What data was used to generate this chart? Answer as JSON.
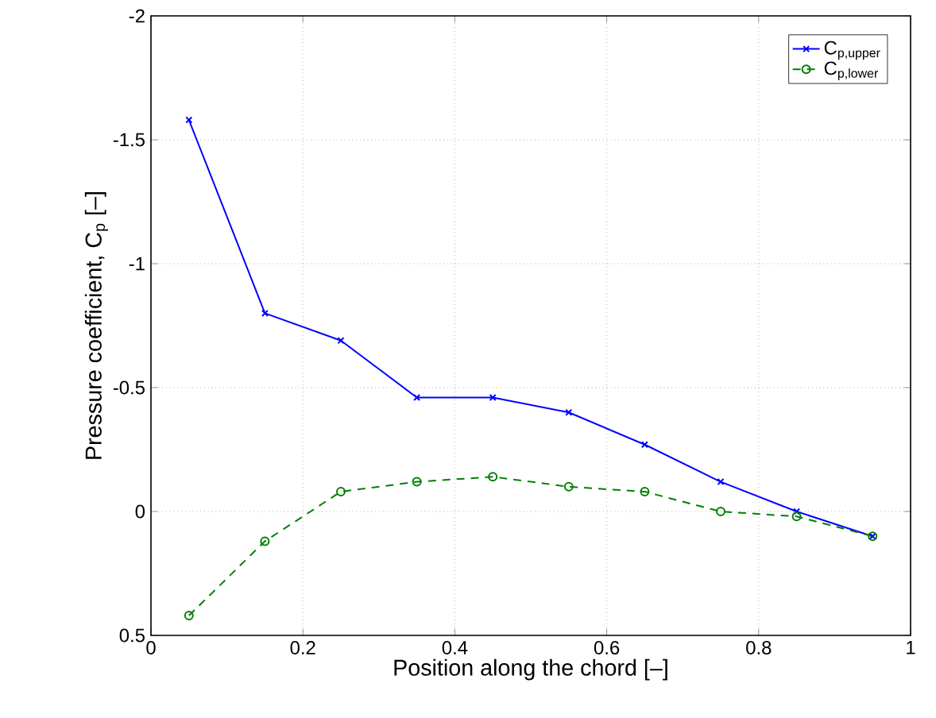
{
  "chart_data": {
    "type": "line",
    "xlabel": "Position along the chord [–]",
    "ylabel": "Pressure coefficient, C$_{p}$ [–]",
    "x": [
      0.05,
      0.15,
      0.25,
      0.35,
      0.45,
      0.55,
      0.65,
      0.75,
      0.85,
      0.95
    ],
    "series": [
      {
        "name": "C$_{p,upper}$",
        "color": "#0000ff",
        "marker": "cross",
        "line_style": "solid",
        "values": [
          -1.58,
          -0.8,
          -0.69,
          -0.46,
          -0.46,
          -0.4,
          -0.27,
          -0.12,
          0.0,
          0.1
        ]
      },
      {
        "name": "C$_{p,lower}$",
        "color": "#008000",
        "marker": "circle",
        "line_style": "dashed",
        "values": [
          0.42,
          0.12,
          -0.08,
          -0.12,
          -0.14,
          -0.1,
          -0.08,
          0.0,
          0.02,
          0.1
        ]
      }
    ],
    "xlim": [
      0,
      1
    ],
    "ylim": [
      0.5,
      -2
    ],
    "xticks": [
      0,
      0.2,
      0.4,
      0.6,
      0.8,
      1
    ],
    "yticks": [
      0.5,
      0,
      -0.5,
      -1,
      -1.5,
      -2
    ],
    "grid": true,
    "legend": "top right"
  }
}
